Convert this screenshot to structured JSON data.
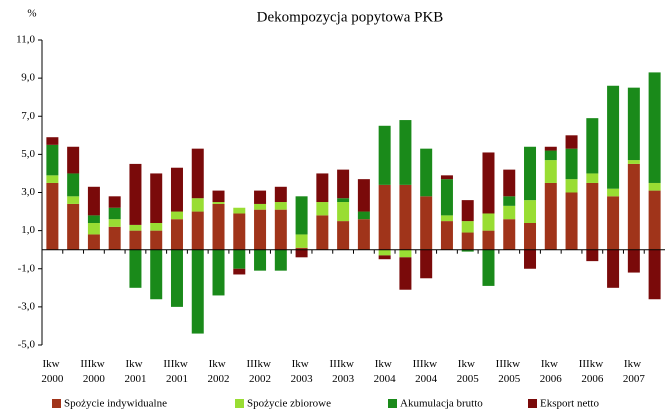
{
  "chart_data": {
    "type": "stacked_bar",
    "title": "Dekompozycja popytowa PKB",
    "y_label": "%",
    "categories": [
      "Ikw 2000",
      null,
      "IIIkw 2000",
      null,
      "Ikw 2001",
      null,
      "IIIkw 2001",
      null,
      "Ikw 2002",
      null,
      "IIIkw 2002",
      null,
      "Ikw 2003",
      null,
      "IIIkw 2003",
      null,
      "Ikw 2004",
      null,
      "IIIkw 2004",
      null,
      "Ikw 2005",
      null,
      "IIIkw 2005",
      null,
      "Ikw 2006",
      null,
      "IIIkw 2006",
      null,
      "Ikw 2007",
      null
    ],
    "series": [
      {
        "name": "Spożycie  indywidualne",
        "color": "#a0341a",
        "values": [
          3.5,
          2.4,
          0.8,
          1.2,
          1.0,
          1.0,
          1.6,
          2.0,
          2.4,
          1.9,
          2.1,
          2.1,
          0.1,
          1.8,
          1.5,
          1.6,
          3.4,
          3.4,
          2.8,
          1.5,
          0.9,
          1.0,
          1.6,
          1.4,
          3.5,
          3.0,
          3.5,
          2.8,
          4.5,
          3.1
        ]
      },
      {
        "name": "Spożycie zbiorowe",
        "color": "#99dd33",
        "values": [
          0.4,
          0.4,
          0.6,
          0.4,
          0.3,
          0.4,
          0.4,
          0.7,
          0.1,
          0.3,
          0.3,
          0.4,
          0.7,
          0.7,
          1.0,
          0.0,
          -0.3,
          -0.4,
          0.0,
          0.3,
          0.6,
          0.9,
          0.7,
          1.2,
          1.2,
          0.7,
          0.5,
          0.4,
          0.2,
          0.4
        ]
      },
      {
        "name": "Akumulacja brutto",
        "color": "#1a8a1a",
        "values": [
          1.6,
          1.2,
          0.4,
          0.6,
          -2.0,
          -2.6,
          -3.0,
          -4.4,
          -2.4,
          -1.0,
          -1.1,
          -1.1,
          2.0,
          0.0,
          0.2,
          0.4,
          3.1,
          3.4,
          2.5,
          1.9,
          -0.1,
          -1.9,
          0.5,
          2.8,
          0.5,
          1.6,
          2.9,
          5.4,
          3.8,
          5.8
        ]
      },
      {
        "name": "Eksport netto",
        "color": "#7a0a0a",
        "values": [
          0.4,
          1.4,
          1.5,
          0.6,
          3.2,
          2.6,
          2.3,
          2.6,
          0.6,
          -0.3,
          0.7,
          0.8,
          -0.4,
          1.5,
          1.5,
          1.7,
          -0.2,
          -1.7,
          -1.5,
          0.2,
          1.1,
          3.2,
          1.4,
          -1.0,
          0.2,
          0.7,
          -0.6,
          -2.0,
          -1.2,
          -2.6
        ]
      }
    ],
    "ylim": [
      -5,
      11
    ],
    "yticks": [
      {
        "value": -5,
        "label": "-5,0"
      },
      {
        "value": -3,
        "label": "-3,0"
      },
      {
        "value": -1,
        "label": "-1,0"
      },
      {
        "value": 1,
        "label": "1,0"
      },
      {
        "value": 3,
        "label": "3,0"
      },
      {
        "value": 5,
        "label": "5,0"
      },
      {
        "value": 7,
        "label": "7,0"
      },
      {
        "value": 9,
        "label": "9,0"
      },
      {
        "value": 11,
        "label": "11,0"
      }
    ],
    "legend": "bottom"
  }
}
